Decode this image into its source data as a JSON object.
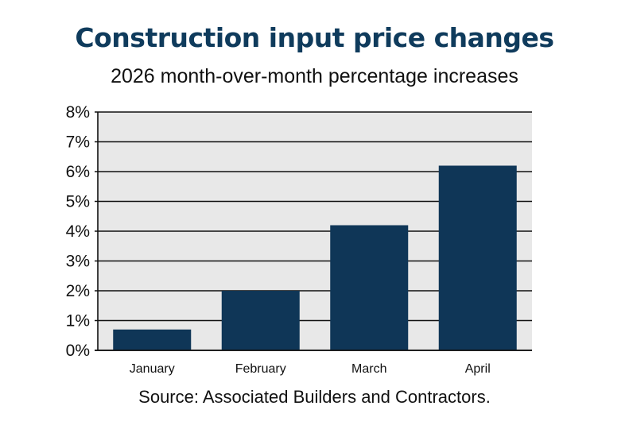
{
  "header": {
    "title": "Construction input price changes",
    "subtitle": "2026 month-over-month percentage increases"
  },
  "footer": {
    "source": "Source: Associated Builders and Contractors."
  },
  "chart_data": {
    "type": "bar",
    "title": "Construction input price changes",
    "subtitle": "2026 month-over-month percentage increases",
    "categories": [
      "January",
      "February",
      "March",
      "April"
    ],
    "values": [
      0.7,
      2.0,
      4.2,
      6.2
    ],
    "unit": "%",
    "ylim": [
      0,
      8
    ],
    "yticks": [
      0,
      1,
      2,
      3,
      4,
      5,
      6,
      7,
      8
    ],
    "ytick_labels": [
      "0%",
      "1%",
      "2%",
      "3%",
      "4%",
      "5%",
      "6%",
      "7%",
      "8%"
    ],
    "xlabel": "",
    "ylabel": "",
    "grid": true,
    "legend": "none",
    "colors": {
      "bar": "#0f3657",
      "plot_background": "#e8e8e8",
      "gridline": "#111111",
      "title": "#0f3b5c"
    }
  }
}
